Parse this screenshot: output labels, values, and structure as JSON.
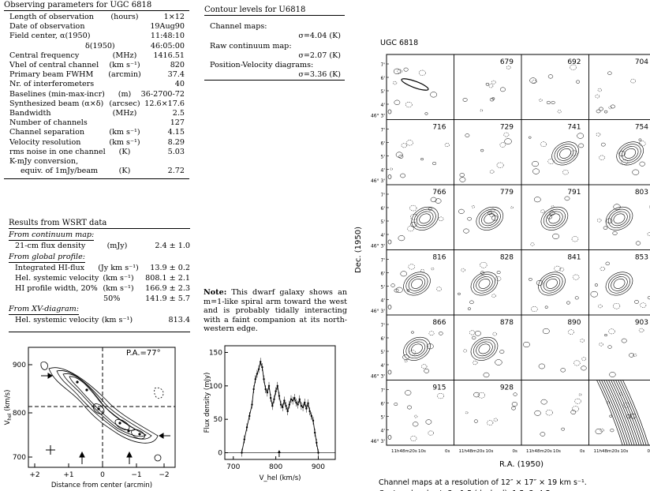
{
  "observing": {
    "title": "Observing parameters for UGC 6818",
    "rows": [
      {
        "label": "Length of observation",
        "unit": "(hours)",
        "value": "1×12"
      },
      {
        "label": "Date of observation",
        "unit": "",
        "value": "19Aug90"
      },
      {
        "label": "Field center, α(1950)",
        "unit": "",
        "value": "11:48:10"
      },
      {
        "label": "δ(1950)",
        "unit": "",
        "value": "46:05:00"
      },
      {
        "label": "Central frequency",
        "unit": "(MHz)",
        "value": "1416.51"
      },
      {
        "label": "Vhel of central channel",
        "unit": "(km s⁻¹)",
        "value": "820"
      },
      {
        "label": "Primary beam FWHM",
        "unit": "(arcmin)",
        "value": "37.4"
      },
      {
        "label": "Nr. of interferometers",
        "unit": "",
        "value": "40"
      },
      {
        "label": "Baselines (min-max-incr)",
        "unit": "(m)",
        "value": "36-2700-72"
      },
      {
        "label": "Synthesized beam (α×δ)",
        "unit": "(arcsec)",
        "value": "12.6×17.6"
      },
      {
        "label": "Bandwidth",
        "unit": "(MHz)",
        "value": "2.5"
      },
      {
        "label": "Number of channels",
        "unit": "",
        "value": "127"
      },
      {
        "label": "Channel separation",
        "unit": "(km s⁻¹)",
        "value": "4.15"
      },
      {
        "label": "Velocity resolution",
        "unit": "(km s⁻¹)",
        "value": "8.29"
      },
      {
        "label": "rms noise in one channel",
        "unit": "(K)",
        "value": "5.03"
      },
      {
        "label": "K-mJy conversion,",
        "unit": "",
        "value": ""
      },
      {
        "label": "equiv. of 1mJy/beam",
        "unit": "(K)",
        "value": "2.72"
      }
    ]
  },
  "contours": {
    "title": "Contour levels for U6818",
    "channel_label": "Channel maps:",
    "channel_value": "σ=4.04 (K)",
    "raw_label": "Raw continuum map:",
    "raw_value": "σ=2.07 (K)",
    "pv_label": "Position-Velocity diagrams:",
    "pv_value": "σ=3.36 (K)"
  },
  "results": {
    "title": "Results from WSRT data",
    "continuum_head": "From continuum map:",
    "flux_label": "21-cm flux density",
    "flux_unit": "(mJy)",
    "flux_value": "2.4 ± 1.0",
    "global_head": "From global profile:",
    "global_rows": [
      {
        "label": "Integrated HI-flux",
        "unit": "(Jy km s⁻¹)",
        "value": "13.9 ± 0.2"
      },
      {
        "label": "Hel. systemic velocity",
        "unit": "(km s⁻¹)",
        "value": "808.1 ± 2.1"
      },
      {
        "label": "HI profile width, 20%",
        "unit": "(km s⁻¹)",
        "value": "166.9 ± 2.3"
      },
      {
        "label": "50%",
        "unit": "(km s⁻¹)",
        "value": "141.9 ± 5.7"
      }
    ],
    "xv_head": "From XV-diagram:",
    "xv_label": "Hel. systemic velocity",
    "xv_unit": "(km s⁻¹)",
    "xv_value": "813.4"
  },
  "note": {
    "lead": "Note:",
    "text": "This dwarf galaxy shows an m=1-like spiral arm toward the west and is probably tidally interacting with a faint companion at its north-western edge."
  },
  "pv_diagram": {
    "pa_label": "P.A.=77°",
    "xlabel": "Distance from center (arcmin)",
    "ylabel": "V",
    "ylabel_sub": "hel",
    "ylabel_unit": "(km/s)",
    "xticks": [
      "+2",
      "+1",
      "0",
      "−1",
      "−2"
    ],
    "yticks": [
      "900",
      "800",
      "700"
    ]
  },
  "chart_data": {
    "type": "line",
    "title": "",
    "xlabel": "V_hel (km/s)",
    "ylabel": "Flux density (mJy)",
    "xlim": [
      680,
      940
    ],
    "ylim": [
      -10,
      160
    ],
    "xticks": [
      "700",
      "800",
      "900"
    ],
    "yticks": [
      "0",
      "50",
      "100",
      "150"
    ],
    "series": [
      {
        "x": [
          720,
          726,
          732,
          738,
          744,
          748,
          752,
          756,
          760,
          764,
          768,
          772,
          776,
          780,
          784,
          788,
          792,
          796,
          800,
          804,
          808,
          812,
          816,
          820,
          824,
          828,
          832,
          836,
          840,
          844,
          848,
          852,
          856,
          860,
          864,
          868,
          872,
          876,
          880,
          884,
          888,
          892,
          896,
          900
        ],
        "values": [
          0,
          20,
          38,
          55,
          72,
          95,
          110,
          118,
          125,
          136,
          128,
          110,
          95,
          90,
          100,
          82,
          70,
          80,
          92,
          100,
          85,
          72,
          68,
          78,
          70,
          62,
          72,
          80,
          78,
          82,
          75,
          72,
          80,
          70,
          68,
          75,
          66,
          74,
          62,
          55,
          48,
          30,
          15,
          0
        ]
      }
    ]
  },
  "channel_maps": {
    "title": "UGC 6818",
    "ylabel": "Dec. (1950)",
    "xlabel": "R.A. (1950)",
    "velocities": [
      "",
      "679",
      "692",
      "704",
      "716",
      "729",
      "741",
      "754",
      "766",
      "779",
      "791",
      "803",
      "816",
      "828",
      "841",
      "853",
      "866",
      "878",
      "890",
      "903",
      "915",
      "928",
      "",
      ""
    ],
    "yticks": [
      "7'",
      "6'",
      "5'",
      "4'"
    ],
    "ytick_base": "46° 3'",
    "xticks": [
      "11h48m20s",
      "10s",
      "0s"
    ],
    "caption1": "Channel maps at a resolution of 12″ × 17″ × 19 km s⁻¹.",
    "caption2": "Contour levels at -3, -1.5 (dashed), 1.5, 3, 4.5, ... ×σ."
  }
}
